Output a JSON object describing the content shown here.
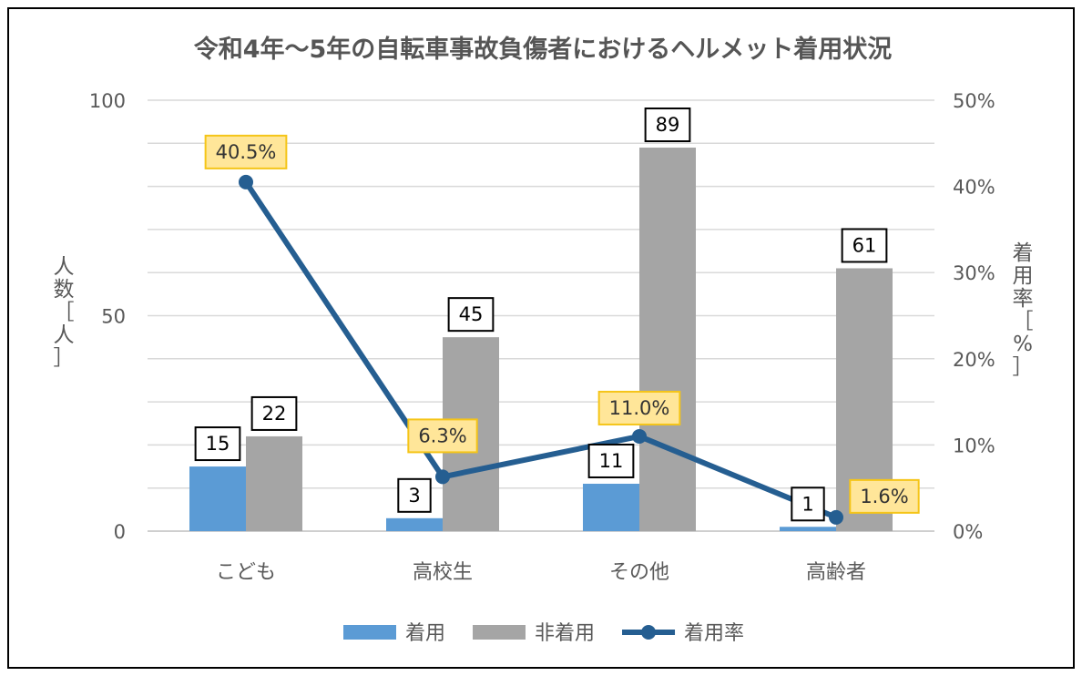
{
  "chart_data": {
    "type": "bar",
    "title": "令和4年～5年の自転車事故負傷者におけるヘルメット着用状況",
    "categories": [
      "こども",
      "高校生",
      "その他",
      "高齢者"
    ],
    "series": [
      {
        "name": "着用",
        "type": "bar",
        "axis": "left",
        "color": "#5b9bd5",
        "values": [
          15,
          3,
          11,
          1
        ]
      },
      {
        "name": "非着用",
        "type": "bar",
        "axis": "left",
        "color": "#a5a5a5",
        "values": [
          22,
          45,
          89,
          61
        ]
      },
      {
        "name": "着用率",
        "type": "line",
        "axis": "right",
        "color": "#255e91",
        "values": [
          40.5,
          6.3,
          11.0,
          1.6
        ]
      }
    ],
    "y_left": {
      "label": "人数［人］",
      "label_chars": [
        "人",
        "数",
        "［",
        "人",
        "］"
      ],
      "min": 0,
      "max": 100,
      "ticks": [
        0,
        50,
        100
      ]
    },
    "y_right": {
      "label": "着用率［%］",
      "label_chars": [
        "着",
        "用",
        "率",
        "［",
        "%",
        "］"
      ],
      "min": 0,
      "max": 50,
      "ticks": [
        "0%",
        "10%",
        "20%",
        "30%",
        "40%",
        "50%"
      ]
    },
    "line_labels": [
      "40.5%",
      "6.3%",
      "11.0%",
      "1.6%"
    ],
    "grid": true,
    "legend": "bottom",
    "label_box_color": "#ffe699",
    "label_border_color": "#f5c518"
  }
}
